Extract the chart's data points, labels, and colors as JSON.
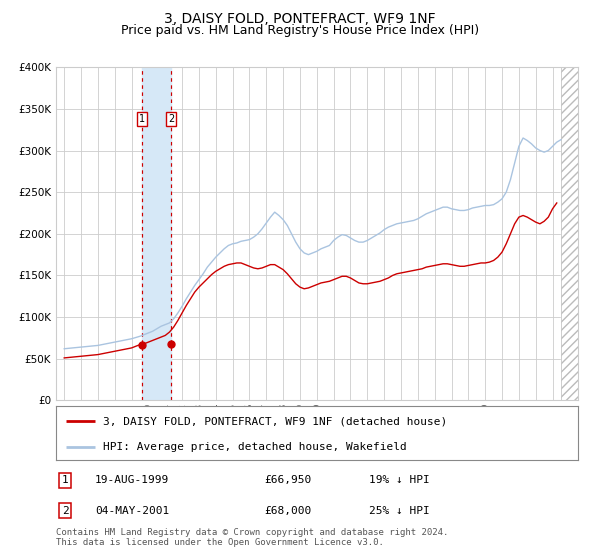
{
  "title": "3, DAISY FOLD, PONTEFRACT, WF9 1NF",
  "subtitle": "Price paid vs. HM Land Registry's House Price Index (HPI)",
  "ylim": [
    0,
    400000
  ],
  "yticks": [
    0,
    50000,
    100000,
    150000,
    200000,
    250000,
    300000,
    350000,
    400000
  ],
  "ytick_labels": [
    "£0",
    "£50K",
    "£100K",
    "£150K",
    "£200K",
    "£250K",
    "£300K",
    "£350K",
    "£400K"
  ],
  "xlim_start": 1994.5,
  "xlim_end": 2025.5,
  "hpi_color": "#aac4e0",
  "price_color": "#cc0000",
  "shade_color": "#d6e8f7",
  "vline_color": "#cc0000",
  "transaction1_x": 1999.625,
  "transaction1_y": 66950,
  "transaction2_x": 2001.338,
  "transaction2_y": 68000,
  "legend_label_price": "3, DAISY FOLD, PONTEFRACT, WF9 1NF (detached house)",
  "legend_label_hpi": "HPI: Average price, detached house, Wakefield",
  "table_rows": [
    {
      "num": "1",
      "date": "19-AUG-1999",
      "price": "£66,950",
      "hpi": "19% ↓ HPI"
    },
    {
      "num": "2",
      "date": "04-MAY-2001",
      "price": "£68,000",
      "hpi": "25% ↓ HPI"
    }
  ],
  "footnote": "Contains HM Land Registry data © Crown copyright and database right 2024.\nThis data is licensed under the Open Government Licence v3.0.",
  "background_color": "#ffffff",
  "plot_bg_color": "#ffffff",
  "grid_color": "#cccccc",
  "title_fontsize": 10,
  "subtitle_fontsize": 9,
  "tick_fontsize": 7.5,
  "legend_fontsize": 8,
  "table_fontsize": 8,
  "footnote_fontsize": 6.5
}
